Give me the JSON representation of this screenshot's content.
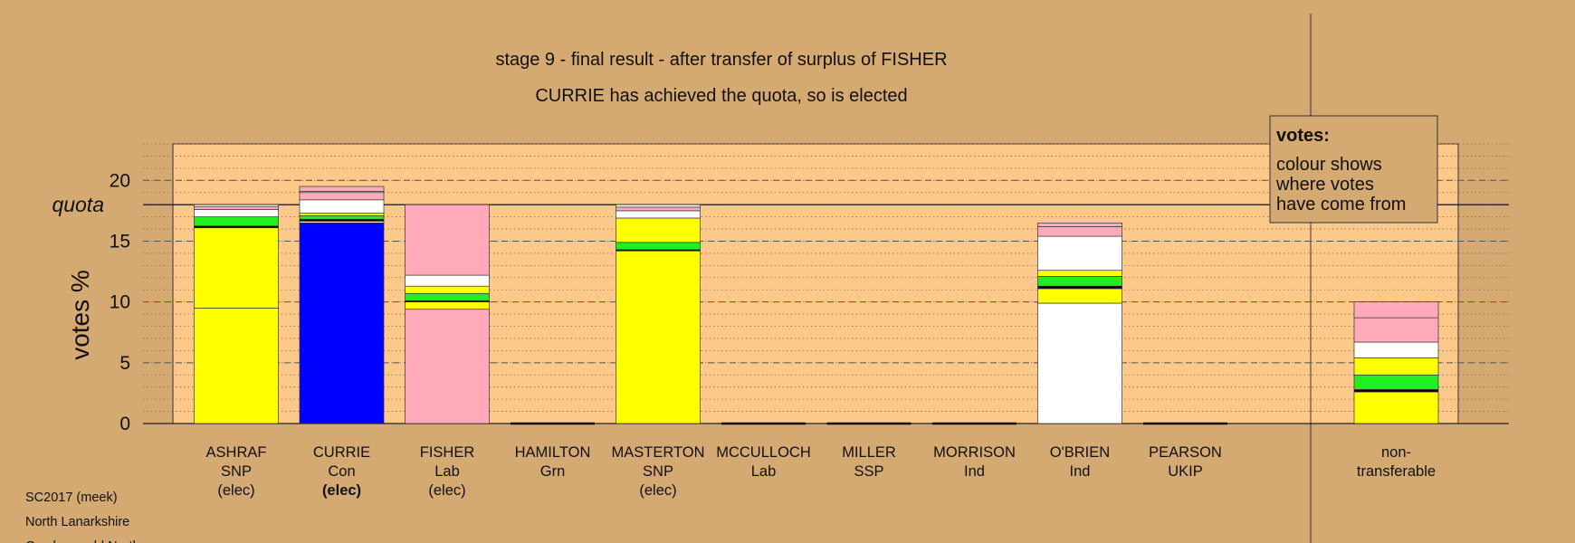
{
  "chart_data": {
    "type": "stacked-bar",
    "title": "stage 9 - final result - after transfer of surplus of FISHER",
    "subtitle": "CURRIE has achieved the quota, so is elected",
    "y_label": "votes %",
    "ylim": [
      0,
      23
    ],
    "yticks": [
      0,
      5,
      10,
      15,
      20
    ],
    "yminor": 1,
    "quota": {
      "value": 18,
      "label": "quota"
    },
    "legend": {
      "title": "votes:",
      "lines": [
        "colour shows",
        "where votes",
        "have come from"
      ]
    },
    "footer": [
      "SC2017 (meek)",
      "North Lanarkshire",
      "Cumbernauld North"
    ],
    "bars": [
      {
        "lines": [
          "ASHRAF",
          "SNP",
          "(elec)"
        ],
        "segments": [
          {
            "color": "#ffff00",
            "value": 9.5
          },
          {
            "color": "#ffff00",
            "value": 6.6
          },
          {
            "color": "#000000",
            "value": 0.15
          },
          {
            "color": "#22ee22",
            "value": 0.75
          },
          {
            "color": "#ffffff",
            "value": 0.6
          },
          {
            "color": "#ffaabb",
            "value": 0.25
          },
          {
            "color": "#ffffff",
            "value": 0.15
          }
        ]
      },
      {
        "lines": [
          "CURRIE",
          "Con",
          "(elec)"
        ],
        "bold_line": 2,
        "segments": [
          {
            "color": "#0000ff",
            "value": 16.5
          },
          {
            "color": "#ffff00",
            "value": 0.15
          },
          {
            "color": "#000000",
            "value": 0.15
          },
          {
            "color": "#22ee22",
            "value": 0.3
          },
          {
            "color": "#ffff00",
            "value": 0.2
          },
          {
            "color": "#ffffff",
            "value": 1.1
          },
          {
            "color": "#ffaabb",
            "value": 0.6
          },
          {
            "color": "#ffffff",
            "value": 0.1
          },
          {
            "color": "#ffaabb",
            "value": 0.4
          }
        ]
      },
      {
        "lines": [
          "FISHER",
          "Lab",
          "(elec)"
        ],
        "segments": [
          {
            "color": "#ffaabb",
            "value": 9.4
          },
          {
            "color": "#ffff00",
            "value": 0.6
          },
          {
            "color": "#000000",
            "value": 0.1
          },
          {
            "color": "#22ee22",
            "value": 0.6
          },
          {
            "color": "#ffff00",
            "value": 0.6
          },
          {
            "color": "#ffffff",
            "value": 0.9
          },
          {
            "color": "#ffaabb",
            "value": 5.8
          }
        ]
      },
      {
        "lines": [
          "HAMILTON",
          "Grn"
        ],
        "segments": []
      },
      {
        "lines": [
          "MASTERTON",
          "SNP",
          "(elec)"
        ],
        "segments": [
          {
            "color": "#ffff00",
            "value": 14.2
          },
          {
            "color": "#000000",
            "value": 0.1
          },
          {
            "color": "#22ee22",
            "value": 0.6
          },
          {
            "color": "#ffff00",
            "value": 2.0
          },
          {
            "color": "#ffffff",
            "value": 0.6
          },
          {
            "color": "#ffaabb",
            "value": 0.3
          },
          {
            "color": "#ffffff",
            "value": 0.2
          }
        ]
      },
      {
        "lines": [
          "MCCULLOCH",
          "Lab"
        ],
        "segments": []
      },
      {
        "lines": [
          "MILLER",
          "SSP"
        ],
        "segments": []
      },
      {
        "lines": [
          "MORRISON",
          "Ind"
        ],
        "segments": []
      },
      {
        "lines": [
          "O'BRIEN",
          "Ind"
        ],
        "segments": [
          {
            "color": "#ffffff",
            "value": 9.9
          },
          {
            "color": "#ffff00",
            "value": 1.2
          },
          {
            "color": "#000000",
            "value": 0.2
          },
          {
            "color": "#22ee22",
            "value": 0.8
          },
          {
            "color": "#ffff00",
            "value": 0.5
          },
          {
            "color": "#ffffff",
            "value": 2.8
          },
          {
            "color": "#ffaabb",
            "value": 0.8
          },
          {
            "color": "#ffaabb",
            "value": 0.3
          }
        ]
      },
      {
        "lines": [
          "PEARSON",
          "UKIP"
        ],
        "segments": []
      },
      {
        "lines": [
          "non-",
          "transferable"
        ],
        "separate": true,
        "segments": [
          {
            "color": "#ffff00",
            "value": 2.6
          },
          {
            "color": "#000000",
            "value": 0.2
          },
          {
            "color": "#22ee22",
            "value": 1.2
          },
          {
            "color": "#ffff00",
            "value": 1.4
          },
          {
            "color": "#ffffff",
            "value": 1.3
          },
          {
            "color": "#ffaabb",
            "value": 2.0
          },
          {
            "color": "#ffaabb",
            "value": 1.3
          }
        ]
      }
    ]
  }
}
